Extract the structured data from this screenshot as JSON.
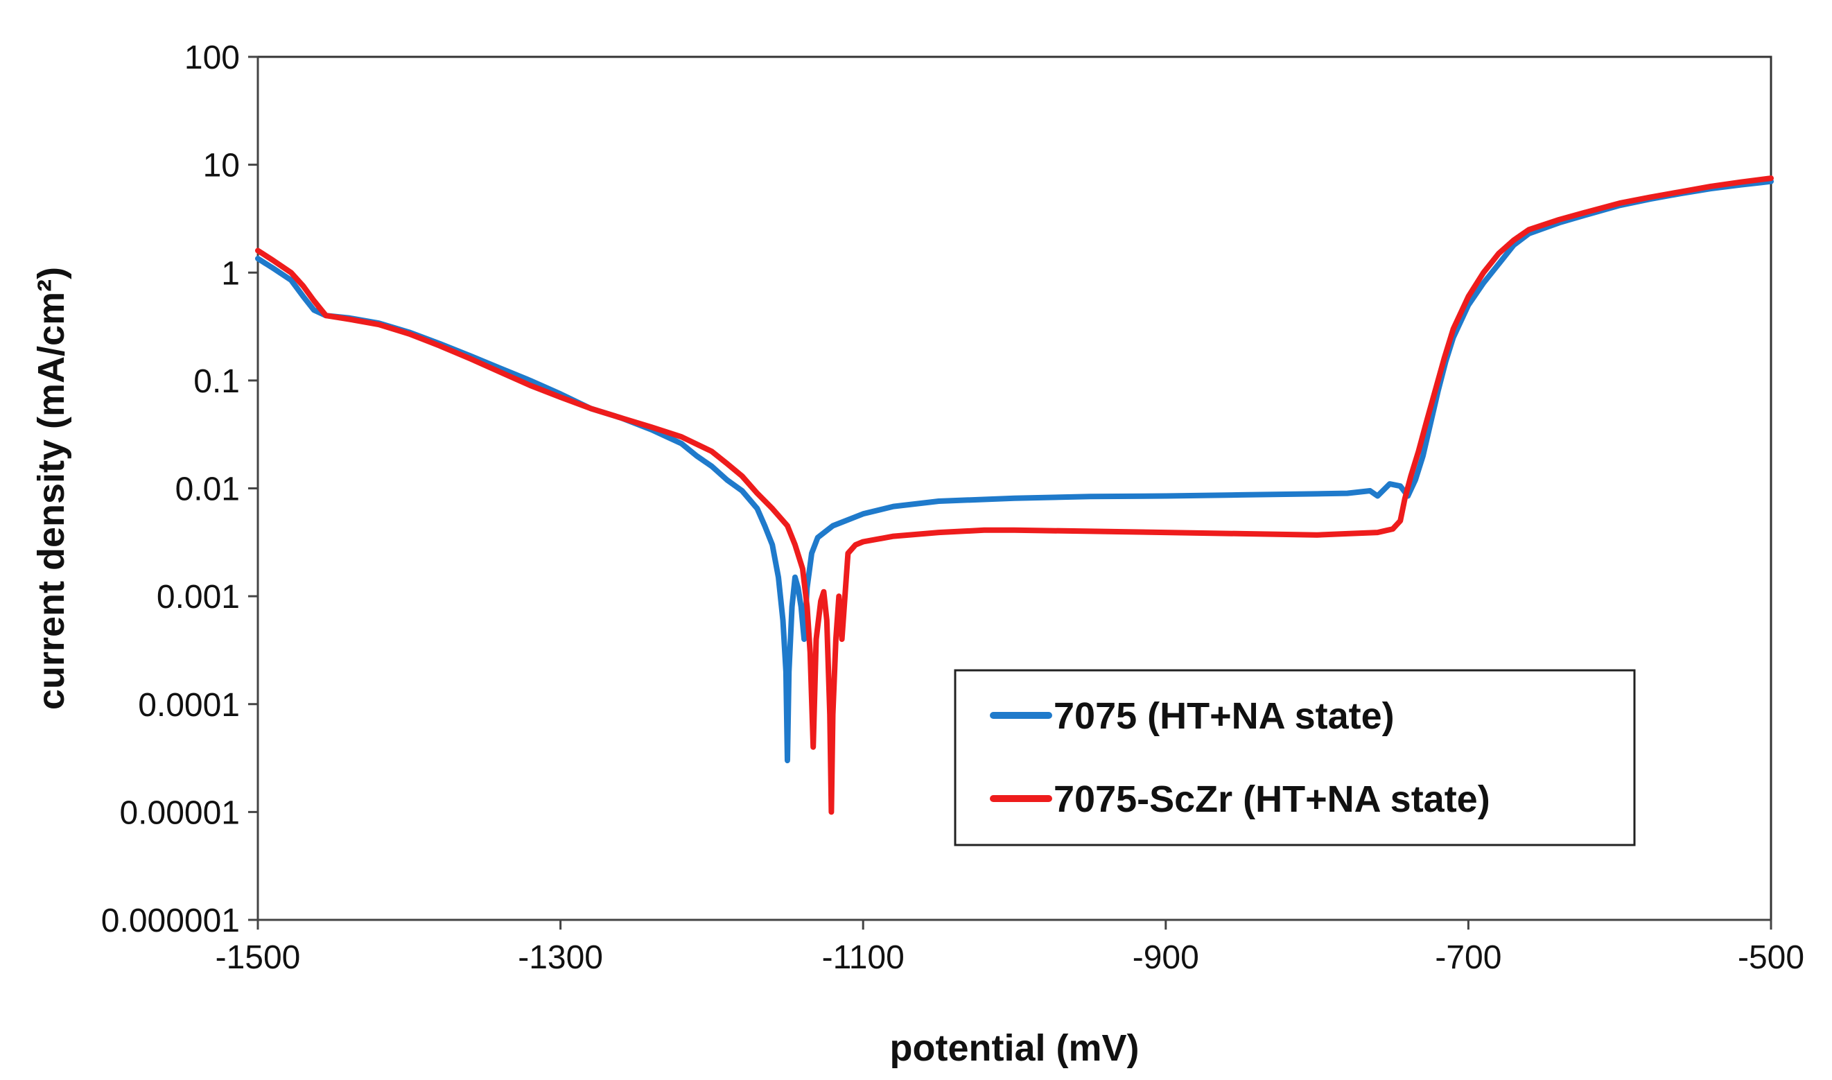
{
  "chart_data": {
    "type": "line",
    "title": "",
    "xlabel": "potential (mV)",
    "ylabel": "current density (mA/cm²)",
    "x_scale": "linear",
    "y_scale": "log",
    "xlim": [
      -1500,
      -500
    ],
    "ylim": [
      1e-06,
      100
    ],
    "x_ticks": [
      -1500,
      -1300,
      -1100,
      -900,
      -700,
      -500
    ],
    "x_tick_labels": [
      "-1500",
      "-1300",
      "-1100",
      "-900",
      "-700",
      "-500"
    ],
    "y_ticks": [
      1e-06,
      1e-05,
      0.0001,
      0.001,
      0.01,
      0.1,
      1,
      10,
      100
    ],
    "y_tick_labels": [
      "0.000001",
      "0.00001",
      "0.0001",
      "0.001",
      "0.01",
      "0.1",
      "1",
      "10",
      "100"
    ],
    "grid": false,
    "legend_position": "bottom-right",
    "series": [
      {
        "name": "7075 (HT+NA state)",
        "color": "#1f7acb",
        "points": [
          [
            -1500,
            1.35
          ],
          [
            -1490,
            1.1
          ],
          [
            -1478,
            0.85
          ],
          [
            -1470,
            0.6
          ],
          [
            -1463,
            0.45
          ],
          [
            -1455,
            0.4
          ],
          [
            -1440,
            0.38
          ],
          [
            -1420,
            0.34
          ],
          [
            -1400,
            0.28
          ],
          [
            -1380,
            0.22
          ],
          [
            -1360,
            0.17
          ],
          [
            -1340,
            0.13
          ],
          [
            -1320,
            0.1
          ],
          [
            -1300,
            0.075
          ],
          [
            -1280,
            0.055
          ],
          [
            -1260,
            0.045
          ],
          [
            -1240,
            0.035
          ],
          [
            -1220,
            0.026
          ],
          [
            -1210,
            0.02
          ],
          [
            -1200,
            0.016
          ],
          [
            -1190,
            0.012
          ],
          [
            -1180,
            0.0095
          ],
          [
            -1170,
            0.0065
          ],
          [
            -1165,
            0.0045
          ],
          [
            -1160,
            0.003
          ],
          [
            -1156,
            0.0015
          ],
          [
            -1153,
            0.0006
          ],
          [
            -1151,
            0.0002
          ],
          [
            -1150,
            3e-05
          ],
          [
            -1149,
            0.0002
          ],
          [
            -1147,
            0.0008
          ],
          [
            -1145,
            0.0015
          ],
          [
            -1143,
            0.0012
          ],
          [
            -1141,
            0.0008
          ],
          [
            -1139,
            0.0004
          ],
          [
            -1137,
            0.0012
          ],
          [
            -1134,
            0.0025
          ],
          [
            -1130,
            0.0035
          ],
          [
            -1120,
            0.0045
          ],
          [
            -1100,
            0.0058
          ],
          [
            -1080,
            0.0068
          ],
          [
            -1050,
            0.0076
          ],
          [
            -1000,
            0.0081
          ],
          [
            -950,
            0.0084
          ],
          [
            -900,
            0.0085
          ],
          [
            -850,
            0.0087
          ],
          [
            -800,
            0.0089
          ],
          [
            -780,
            0.009
          ],
          [
            -765,
            0.0095
          ],
          [
            -760,
            0.0085
          ],
          [
            -752,
            0.011
          ],
          [
            -745,
            0.0105
          ],
          [
            -740,
            0.0085
          ],
          [
            -735,
            0.012
          ],
          [
            -730,
            0.02
          ],
          [
            -725,
            0.04
          ],
          [
            -720,
            0.08
          ],
          [
            -715,
            0.15
          ],
          [
            -710,
            0.25
          ],
          [
            -700,
            0.5
          ],
          [
            -690,
            0.8
          ],
          [
            -680,
            1.2
          ],
          [
            -670,
            1.8
          ],
          [
            -660,
            2.3
          ],
          [
            -640,
            2.9
          ],
          [
            -620,
            3.5
          ],
          [
            -600,
            4.2
          ],
          [
            -580,
            4.8
          ],
          [
            -560,
            5.4
          ],
          [
            -540,
            6.0
          ],
          [
            -520,
            6.5
          ],
          [
            -500,
            7.0
          ]
        ]
      },
      {
        "name": "7075-ScZr (HT+NA state)",
        "color": "#ee1c1c",
        "points": [
          [
            -1500,
            1.6
          ],
          [
            -1490,
            1.3
          ],
          [
            -1478,
            1.0
          ],
          [
            -1470,
            0.75
          ],
          [
            -1463,
            0.55
          ],
          [
            -1458,
            0.45
          ],
          [
            -1455,
            0.4
          ],
          [
            -1440,
            0.37
          ],
          [
            -1420,
            0.33
          ],
          [
            -1400,
            0.27
          ],
          [
            -1380,
            0.21
          ],
          [
            -1360,
            0.16
          ],
          [
            -1340,
            0.12
          ],
          [
            -1320,
            0.09
          ],
          [
            -1300,
            0.07
          ],
          [
            -1280,
            0.055
          ],
          [
            -1260,
            0.045
          ],
          [
            -1240,
            0.037
          ],
          [
            -1220,
            0.03
          ],
          [
            -1200,
            0.022
          ],
          [
            -1190,
            0.017
          ],
          [
            -1180,
            0.013
          ],
          [
            -1170,
            0.009
          ],
          [
            -1160,
            0.0065
          ],
          [
            -1150,
            0.0045
          ],
          [
            -1145,
            0.003
          ],
          [
            -1140,
            0.0018
          ],
          [
            -1137,
            0.0008
          ],
          [
            -1135,
            0.0003
          ],
          [
            -1133,
            4e-05
          ],
          [
            -1131,
            0.0004
          ],
          [
            -1128,
            0.0009
          ],
          [
            -1126,
            0.0011
          ],
          [
            -1124,
            0.0006
          ],
          [
            -1122,
            8e-05
          ],
          [
            -1121,
            1e-05
          ],
          [
            -1120,
            8e-05
          ],
          [
            -1118,
            0.0004
          ],
          [
            -1116,
            0.001
          ],
          [
            -1114,
            0.0004
          ],
          [
            -1112,
            0.001
          ],
          [
            -1110,
            0.0025
          ],
          [
            -1105,
            0.003
          ],
          [
            -1100,
            0.0032
          ],
          [
            -1080,
            0.0036
          ],
          [
            -1050,
            0.0039
          ],
          [
            -1020,
            0.0041
          ],
          [
            -1000,
            0.0041
          ],
          [
            -950,
            0.004
          ],
          [
            -900,
            0.0039
          ],
          [
            -850,
            0.0038
          ],
          [
            -800,
            0.0037
          ],
          [
            -780,
            0.0038
          ],
          [
            -760,
            0.0039
          ],
          [
            -750,
            0.0042
          ],
          [
            -745,
            0.005
          ],
          [
            -742,
            0.008
          ],
          [
            -738,
            0.013
          ],
          [
            -733,
            0.022
          ],
          [
            -728,
            0.04
          ],
          [
            -722,
            0.08
          ],
          [
            -716,
            0.16
          ],
          [
            -710,
            0.3
          ],
          [
            -700,
            0.6
          ],
          [
            -690,
            1.0
          ],
          [
            -680,
            1.5
          ],
          [
            -670,
            2.0
          ],
          [
            -660,
            2.5
          ],
          [
            -640,
            3.1
          ],
          [
            -620,
            3.7
          ],
          [
            -600,
            4.4
          ],
          [
            -580,
            5.0
          ],
          [
            -560,
            5.6
          ],
          [
            -540,
            6.3
          ],
          [
            -520,
            6.9
          ],
          [
            -500,
            7.5
          ]
        ]
      }
    ]
  }
}
